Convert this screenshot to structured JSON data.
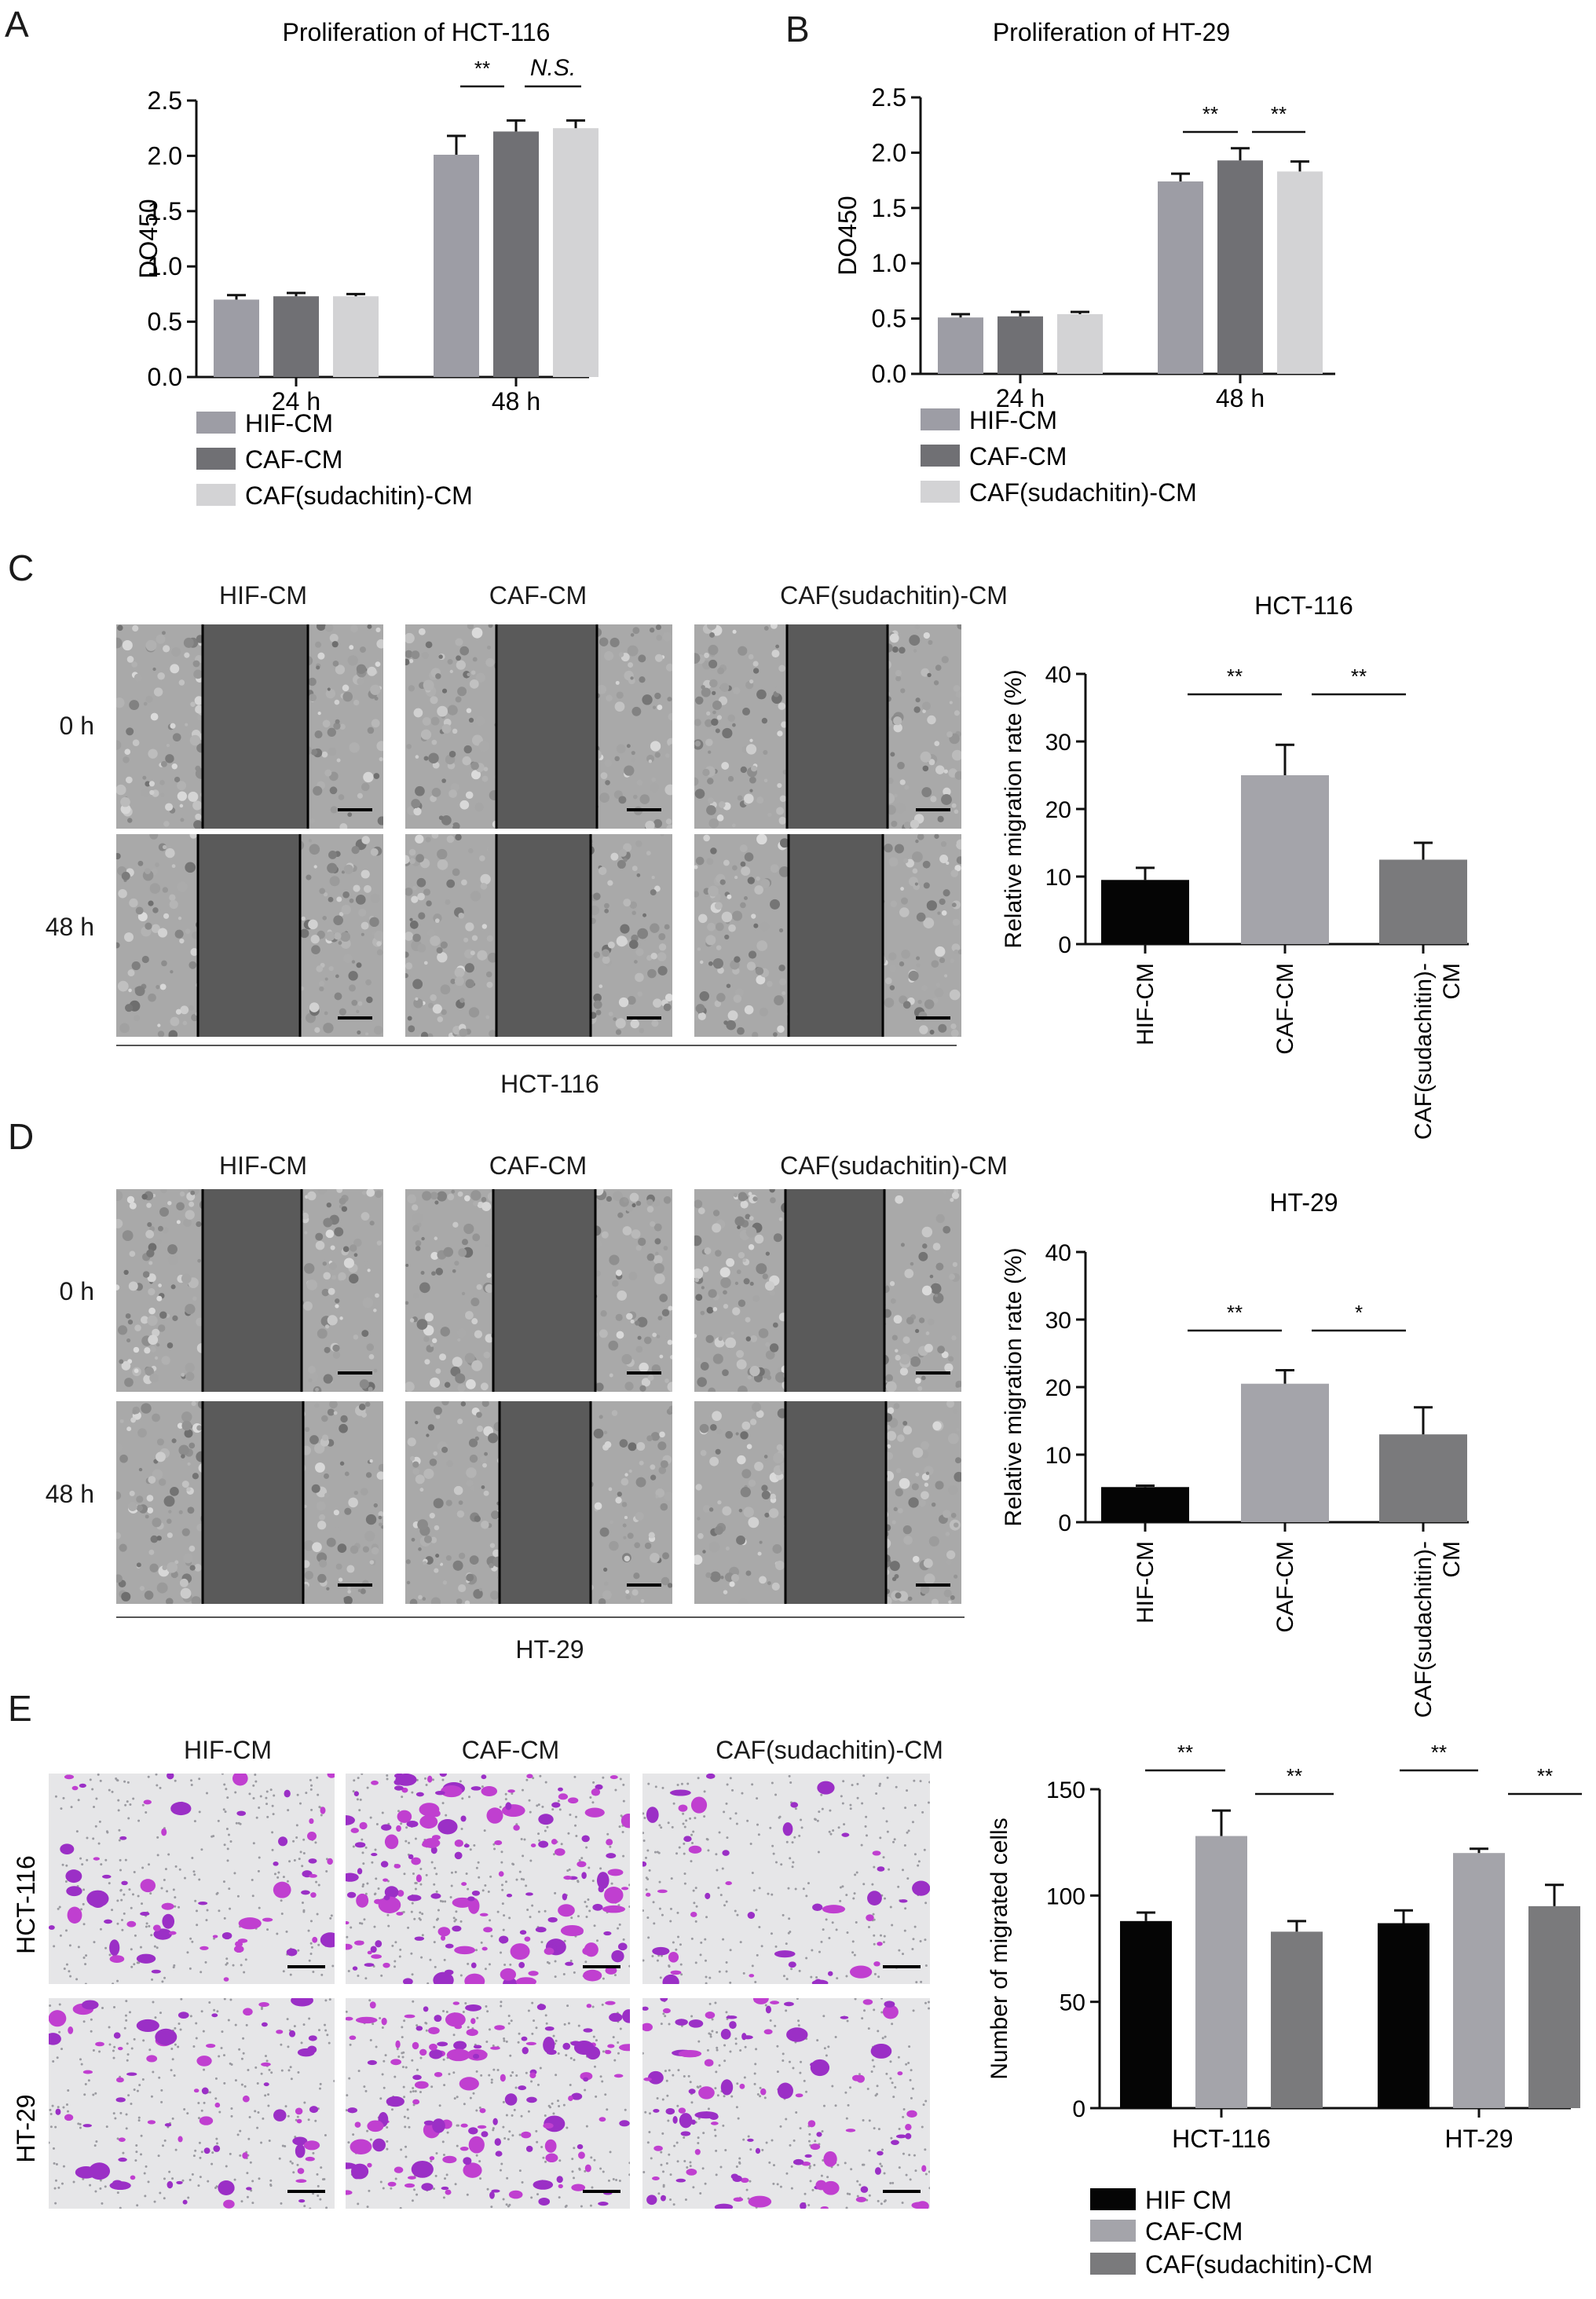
{
  "panels": {
    "A": "A",
    "B": "B",
    "C": "C",
    "D": "D",
    "E": "E"
  },
  "colors": {
    "hif": "#9d9da5",
    "caf": "#707074",
    "caf_sud": "#d3d3d5",
    "black": "#050505",
    "mid_gray": "#a4a4aa",
    "dark_gray": "#7a7a7c",
    "wound_gray": "#5a5a5a",
    "cell_bg": "#a9a9a9",
    "stain": "#9b2fc6"
  },
  "image_labels": {
    "hif": "HIF-CM",
    "caf": "CAF-CM",
    "caf_sud": "CAF(sudachitin)-CM",
    "t0": "0 h",
    "t48": "48 h",
    "hct": "HCT-116",
    "ht": "HT-29"
  },
  "chart_data": [
    {
      "id": "A",
      "type": "bar",
      "title": "Proliferation of HCT-116",
      "ylabel": "DO450",
      "ylim": [
        0,
        2.5
      ],
      "yticks": [
        "0.0",
        "0.5",
        "1.0",
        "1.5",
        "2.0",
        "2.5"
      ],
      "categories": [
        "24 h",
        "48 h"
      ],
      "series": [
        {
          "name": "HIF-CM",
          "values": [
            0.7,
            2.01
          ],
          "errors": [
            0.04,
            0.17
          ]
        },
        {
          "name": "CAF-CM",
          "values": [
            0.73,
            2.22
          ],
          "errors": [
            0.03,
            0.1
          ]
        },
        {
          "name": "CAF(sudachitin)-CM",
          "values": [
            0.73,
            2.25
          ],
          "errors": [
            0.02,
            0.07
          ]
        }
      ],
      "significance": [
        "**",
        "N.S."
      ],
      "legend": "below"
    },
    {
      "id": "B",
      "type": "bar",
      "title": "Proliferation of HT-29",
      "ylabel": "DO450",
      "ylim": [
        0,
        2.5
      ],
      "yticks": [
        "0.0",
        "0.5",
        "1.0",
        "1.5",
        "2.0",
        "2.5"
      ],
      "categories": [
        "24 h",
        "48 h"
      ],
      "series": [
        {
          "name": "HIF-CM",
          "values": [
            0.51,
            1.74
          ],
          "errors": [
            0.03,
            0.07
          ]
        },
        {
          "name": "CAF-CM",
          "values": [
            0.52,
            1.93
          ],
          "errors": [
            0.04,
            0.11
          ]
        },
        {
          "name": "CAF(sudachitin)-CM",
          "values": [
            0.54,
            1.83
          ],
          "errors": [
            0.02,
            0.09
          ]
        }
      ],
      "significance": [
        "**",
        "**"
      ],
      "legend": "below"
    },
    {
      "id": "C",
      "type": "bar",
      "title": "HCT-116",
      "ylabel": "Relative migration rate (%)",
      "ylim": [
        0,
        40
      ],
      "yticks": [
        "0",
        "10",
        "20",
        "30",
        "40"
      ],
      "categories": [
        "HIF-CM",
        "CAF-CM",
        "CAF(sudachitin)-CM"
      ],
      "tick_lines": [
        [
          "HIF-CM"
        ],
        [
          "CAF-CM"
        ],
        [
          "CAF(sudachitin)-",
          "CM"
        ]
      ],
      "values": [
        9.5,
        25.0,
        12.5
      ],
      "errors": [
        1.8,
        4.5,
        2.5
      ],
      "significance": [
        "**",
        "**"
      ]
    },
    {
      "id": "D",
      "type": "bar",
      "title": "HT-29",
      "ylabel": "Relative migration rate (%)",
      "ylim": [
        0,
        40
      ],
      "yticks": [
        "0",
        "10",
        "20",
        "30",
        "40"
      ],
      "categories": [
        "HIF-CM",
        "CAF-CM",
        "CAF(sudachitin)-CM"
      ],
      "tick_lines": [
        [
          "HIF-CM"
        ],
        [
          "CAF-CM"
        ],
        [
          "CAF(sudachitin)-",
          "CM"
        ]
      ],
      "values": [
        5.2,
        20.5,
        13.0
      ],
      "errors": [
        0.2,
        2.0,
        4.0
      ],
      "significance": [
        "**",
        "*"
      ]
    },
    {
      "id": "E",
      "type": "bar",
      "title": "",
      "ylabel": "Number of migrated cells",
      "ylim": [
        0,
        150
      ],
      "yticks": [
        "0",
        "50",
        "100",
        "150"
      ],
      "categories": [
        "HCT-116",
        "HT-29"
      ],
      "series": [
        {
          "name": "HIF CM",
          "values": [
            88,
            87
          ],
          "errors": [
            4,
            6
          ]
        },
        {
          "name": "CAF-CM",
          "values": [
            128,
            120
          ],
          "errors": [
            12,
            2
          ]
        },
        {
          "name": "CAF(sudachitin)-CM",
          "values": [
            83,
            95
          ],
          "errors": [
            5,
            10
          ]
        }
      ],
      "significance": [
        "**",
        "**",
        "**",
        "**"
      ],
      "legend": "below"
    }
  ]
}
